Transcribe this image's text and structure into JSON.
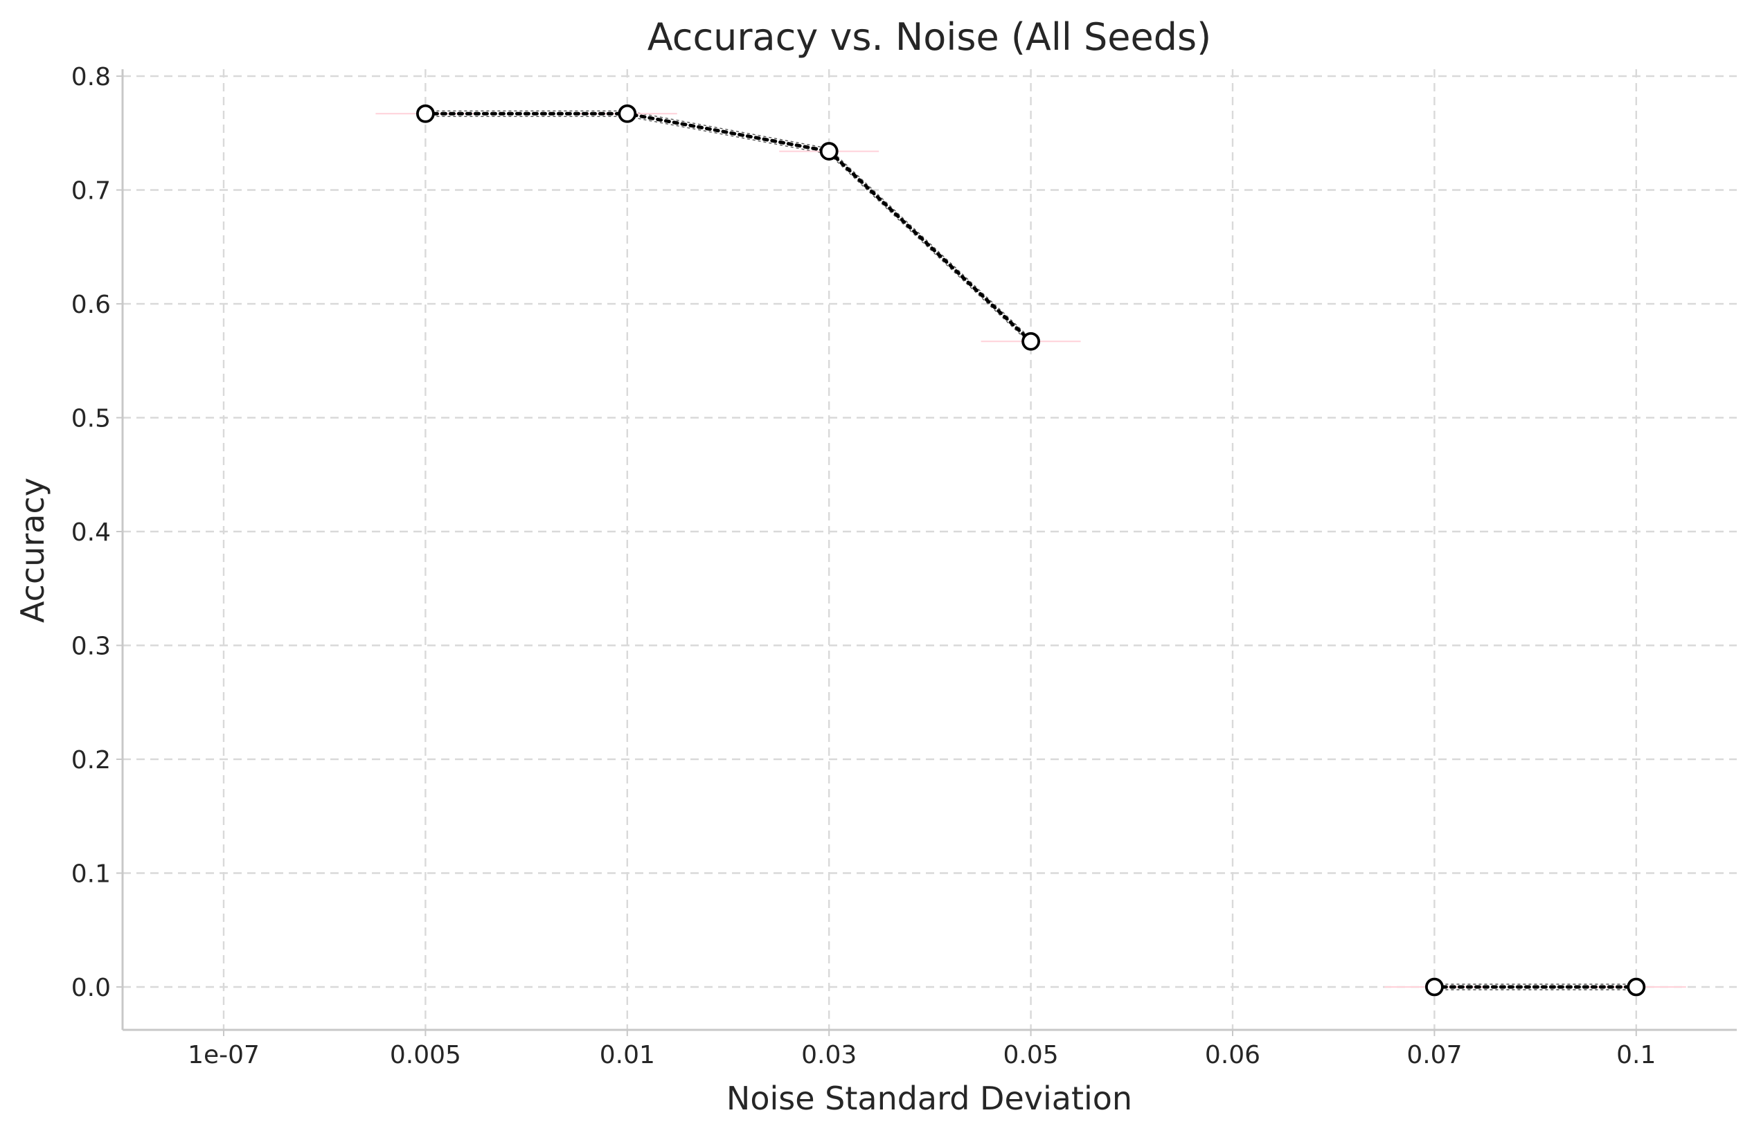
{
  "chart_data": {
    "type": "line",
    "title": "Accuracy vs. Noise (All Seeds)",
    "xlabel": "Noise Standard Deviation",
    "ylabel": "Accuracy",
    "x_scale": "categorical",
    "categories": [
      "1e-07",
      "0.005",
      "0.01",
      "0.03",
      "0.05",
      "0.06",
      "0.07",
      "0.1"
    ],
    "ylim": [
      -0.037,
      0.8
    ],
    "yticks": [
      "0.0",
      "0.1",
      "0.2",
      "0.3",
      "0.4",
      "0.5",
      "0.6",
      "0.7",
      "0.8"
    ],
    "grid": true,
    "legend": "none",
    "series": [
      {
        "segments": [
          [
            {
              "x": "0.005",
              "y": 0.767
            },
            {
              "x": "0.01",
              "y": 0.767
            },
            {
              "x": "0.03",
              "y": 0.734
            },
            {
              "x": "0.05",
              "y": 0.567
            }
          ],
          [
            {
              "x": "0.07",
              "y": 0.0
            },
            {
              "x": "0.1",
              "y": 0.0
            }
          ]
        ]
      }
    ],
    "styles": {
      "mean_line_color": "#000000",
      "marker_fill": "#ffffff",
      "grid_color": "#d9d9d9",
      "spine_color": "#c8c8c8",
      "seed_line_color": "#555555",
      "seed_band_color": "#ffd1d9"
    }
  }
}
